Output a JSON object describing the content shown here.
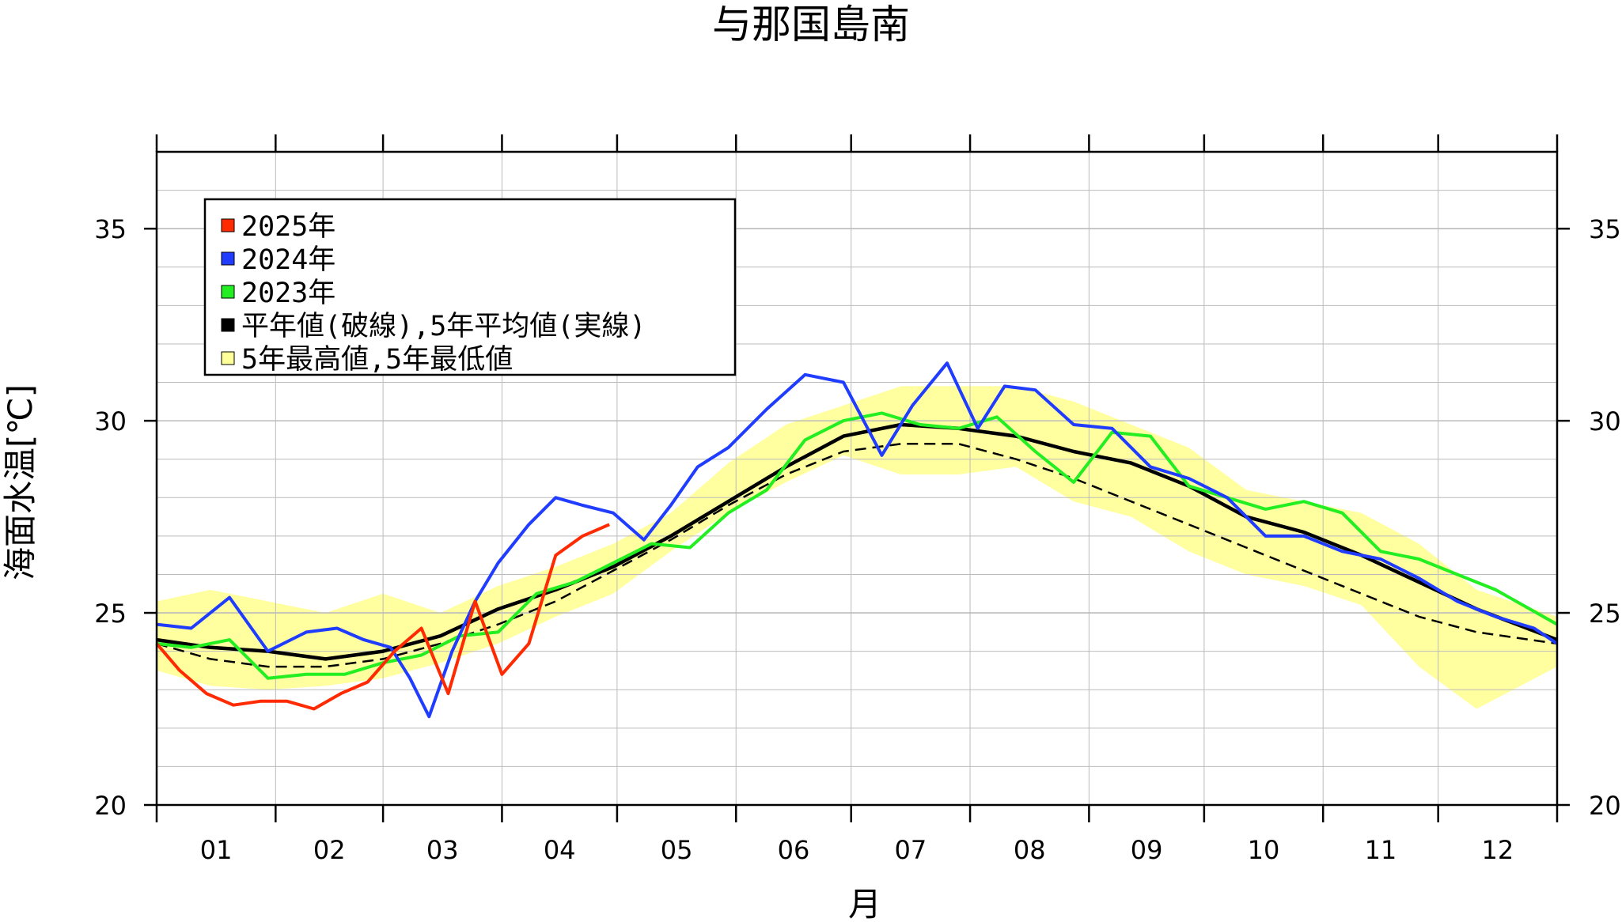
{
  "chart_data": {
    "type": "line",
    "title": "与那国島南",
    "xlabel": "月",
    "ylabel": "海面水温[℃]",
    "x_tick_labels": [
      "01",
      "02",
      "03",
      "04",
      "05",
      "06",
      "07",
      "08",
      "09",
      "10",
      "11",
      "12"
    ],
    "ylim": [
      20,
      37
    ],
    "y_ticks": [
      20,
      25,
      30,
      35
    ],
    "y_tick_labels": [
      "20",
      "25",
      "30",
      "35"
    ],
    "grid": true,
    "legend": {
      "placement": "top-left",
      "items": [
        {
          "label": "2025年",
          "color": "#ff2a00"
        },
        {
          "label": "2024年",
          "color": "#1f3cff"
        },
        {
          "label": "2023年",
          "color": "#22ee22"
        },
        {
          "label": "平年値(破線),5年平均値(実線)",
          "color": "#000000"
        },
        {
          "label": "5年最高値,5年最低値",
          "color": "#ffff99"
        }
      ]
    },
    "colors": {
      "y2025": "#ff2a00",
      "y2024": "#1f3cff",
      "y2023": "#22ee22",
      "mean": "#000000",
      "band": "#ffffa0"
    },
    "series": [
      {
        "name": "2025年",
        "x": [
          1,
          7,
          14,
          21,
          28,
          35,
          42,
          49,
          56,
          63,
          70,
          77,
          84,
          91,
          98,
          105,
          112,
          119
        ],
        "values": [
          24.2,
          23.5,
          22.9,
          22.6,
          22.7,
          22.7,
          22.5,
          22.9,
          23.2,
          24.0,
          24.6,
          22.9,
          25.3,
          23.4,
          24.2,
          26.5,
          27.0,
          27.3
        ]
      },
      {
        "name": "2024年",
        "x": [
          1,
          10,
          20,
          30,
          40,
          48,
          55,
          62,
          67,
          72,
          78,
          84,
          90,
          98,
          105,
          112,
          120,
          128,
          135,
          142,
          150,
          160,
          170,
          180,
          190,
          198,
          207,
          215,
          222,
          230,
          240,
          250,
          260,
          270,
          280,
          290,
          300,
          310,
          320,
          330,
          340,
          350,
          360,
          366
        ],
        "values": [
          24.7,
          24.6,
          25.4,
          24.0,
          24.5,
          24.6,
          24.3,
          24.1,
          23.3,
          22.3,
          24.0,
          25.3,
          26.3,
          27.3,
          28.0,
          27.8,
          27.6,
          26.9,
          27.8,
          28.8,
          29.3,
          30.3,
          31.2,
          31.0,
          29.1,
          30.4,
          31.5,
          29.8,
          30.9,
          30.8,
          29.9,
          29.8,
          28.8,
          28.5,
          28.0,
          27.0,
          27.0,
          26.6,
          26.4,
          25.9,
          25.3,
          24.9,
          24.6,
          24.2
        ]
      },
      {
        "name": "2023年",
        "x": [
          1,
          10,
          20,
          30,
          40,
          50,
          60,
          70,
          80,
          90,
          100,
          110,
          120,
          130,
          140,
          150,
          160,
          170,
          180,
          190,
          200,
          210,
          220,
          230,
          240,
          250,
          260,
          270,
          280,
          290,
          300,
          310,
          320,
          330,
          340,
          350,
          366
        ],
        "values": [
          24.2,
          24.1,
          24.3,
          23.3,
          23.4,
          23.4,
          23.7,
          23.9,
          24.4,
          24.5,
          25.5,
          25.8,
          26.3,
          26.8,
          26.7,
          27.6,
          28.2,
          29.5,
          30.0,
          30.2,
          29.9,
          29.8,
          30.1,
          29.2,
          28.4,
          29.7,
          29.6,
          28.3,
          28.0,
          27.7,
          27.9,
          27.6,
          26.6,
          26.4,
          26.0,
          25.6,
          24.7
        ]
      },
      {
        "name": "5年平均値(実線)",
        "x": [
          1,
          15,
          30,
          45,
          60,
          75,
          90,
          105,
          120,
          135,
          150,
          165,
          180,
          195,
          210,
          225,
          240,
          255,
          270,
          285,
          300,
          315,
          330,
          345,
          366
        ],
        "values": [
          24.3,
          24.1,
          24.0,
          23.8,
          24.0,
          24.4,
          25.1,
          25.6,
          26.2,
          27.0,
          27.9,
          28.8,
          29.6,
          29.9,
          29.8,
          29.6,
          29.2,
          28.9,
          28.3,
          27.5,
          27.1,
          26.5,
          25.8,
          25.1,
          24.3
        ]
      },
      {
        "name": "平年値(破線)",
        "x": [
          1,
          15,
          30,
          45,
          60,
          75,
          90,
          105,
          120,
          135,
          150,
          165,
          180,
          195,
          210,
          225,
          240,
          255,
          270,
          285,
          300,
          315,
          330,
          345,
          366
        ],
        "values": [
          24.2,
          23.8,
          23.6,
          23.6,
          23.8,
          24.2,
          24.7,
          25.3,
          26.1,
          26.9,
          27.8,
          28.6,
          29.2,
          29.4,
          29.4,
          29.0,
          28.5,
          27.9,
          27.3,
          26.7,
          26.1,
          25.5,
          24.9,
          24.5,
          24.2
        ]
      },
      {
        "name": "5年最高値",
        "x": [
          1,
          15,
          30,
          45,
          60,
          75,
          90,
          105,
          120,
          135,
          150,
          165,
          180,
          195,
          210,
          225,
          240,
          255,
          270,
          285,
          300,
          315,
          330,
          345,
          366
        ],
        "values": [
          25.3,
          25.6,
          25.3,
          25.0,
          25.5,
          25.0,
          25.7,
          26.2,
          26.8,
          27.6,
          28.9,
          29.9,
          30.4,
          30.9,
          30.9,
          30.9,
          30.5,
          29.9,
          29.3,
          28.2,
          27.9,
          27.6,
          26.8,
          25.6,
          24.9
        ]
      },
      {
        "name": "5年最低値",
        "x": [
          1,
          15,
          30,
          45,
          60,
          75,
          90,
          105,
          120,
          135,
          150,
          165,
          180,
          195,
          210,
          225,
          240,
          255,
          270,
          285,
          300,
          315,
          330,
          345,
          366
        ],
        "values": [
          23.5,
          23.1,
          23.0,
          23.1,
          23.3,
          23.7,
          24.2,
          24.9,
          25.5,
          26.6,
          27.6,
          28.4,
          29.1,
          28.6,
          28.6,
          28.8,
          27.9,
          27.5,
          26.6,
          26.0,
          25.7,
          25.2,
          23.6,
          22.5,
          23.6
        ]
      }
    ]
  }
}
